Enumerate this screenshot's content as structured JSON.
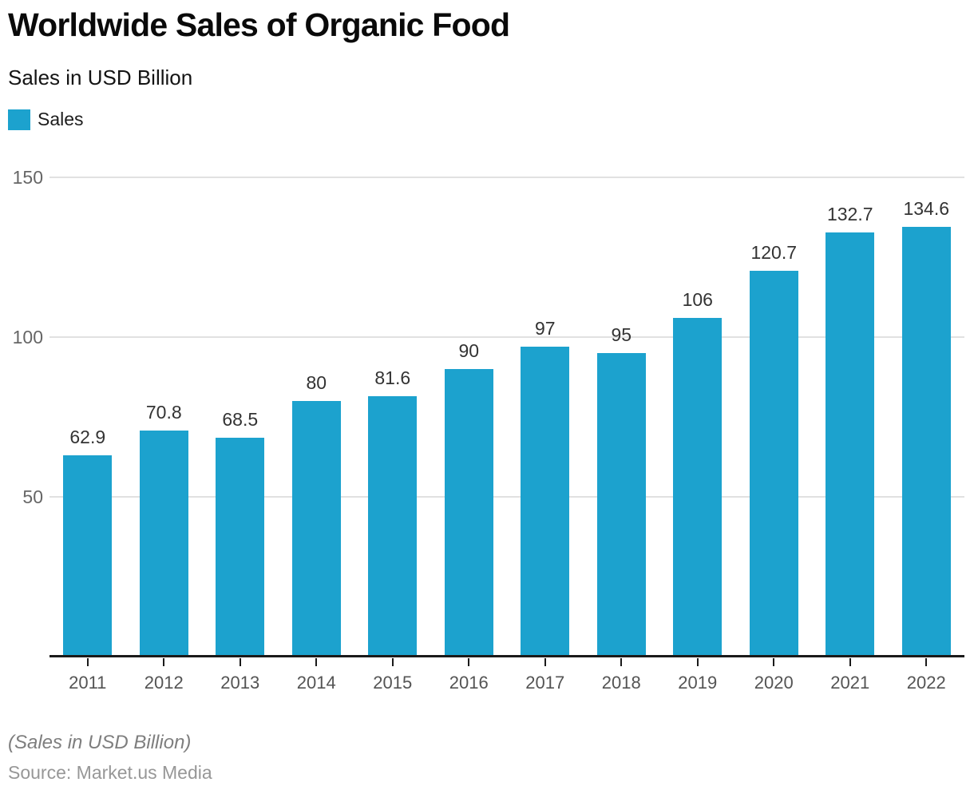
{
  "header": {
    "title": "Worldwide Sales of Organic Food",
    "subtitle": "Sales in USD Billion",
    "legend": {
      "label": "Sales"
    }
  },
  "colors": {
    "bar": "#1CA2CE",
    "grid": "#E1E1E1",
    "axis": "#1A1A1A"
  },
  "chart_data": {
    "type": "bar",
    "title": "Worldwide Sales of Organic Food",
    "subtitle": "Sales in USD Billion",
    "categories": [
      "2011",
      "2012",
      "2013",
      "2014",
      "2015",
      "2016",
      "2017",
      "2018",
      "2019",
      "2020",
      "2021",
      "2022"
    ],
    "values": [
      62.9,
      70.8,
      68.5,
      80,
      81.6,
      90,
      97,
      95,
      106,
      120.7,
      132.7,
      134.6
    ],
    "series_name": "Sales",
    "xlabel": "",
    "ylabel": "Sales in USD Billion",
    "ylim": [
      0,
      150
    ],
    "yticks": [
      50,
      100,
      150
    ],
    "grid": true,
    "legend_position": "top-left",
    "data_labels": true
  },
  "footer": {
    "note": "(Sales in USD Billion)",
    "source": "Source: Market.us Media"
  }
}
